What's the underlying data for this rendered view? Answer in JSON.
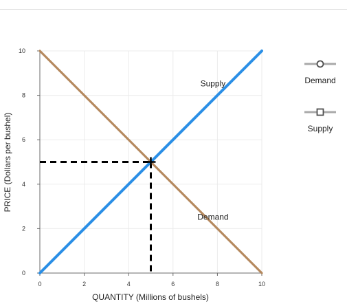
{
  "chart_data": {
    "type": "line",
    "xlabel": "QUANTITY (Millions of bushels)",
    "ylabel": "PRICE (Dollars per bushel)",
    "xlim": [
      0,
      10
    ],
    "ylim": [
      0,
      10
    ],
    "x_ticks": [
      "0",
      "2",
      "4",
      "6",
      "8",
      "10"
    ],
    "y_ticks": [
      "0",
      "2",
      "4",
      "6",
      "8",
      "10"
    ],
    "grid": true,
    "series": [
      {
        "name": "Demand",
        "color": "#b5895e",
        "marker": "circle",
        "points": [
          [
            0,
            10
          ],
          [
            10,
            0
          ]
        ]
      },
      {
        "name": "Supply",
        "color": "#2b8fe6",
        "marker": "square",
        "points": [
          [
            0,
            0
          ],
          [
            10,
            10
          ]
        ]
      }
    ],
    "curve_labels": [
      {
        "text": "Supply",
        "x": 7.8,
        "y": 8.4
      },
      {
        "text": "Demand",
        "x": 7.8,
        "y": 2.4
      }
    ],
    "equilibrium": {
      "x": 5,
      "y": 5,
      "marker": "plus"
    },
    "legend_position": "right"
  },
  "legend": {
    "demand_label": "Demand",
    "supply_label": "Supply"
  }
}
